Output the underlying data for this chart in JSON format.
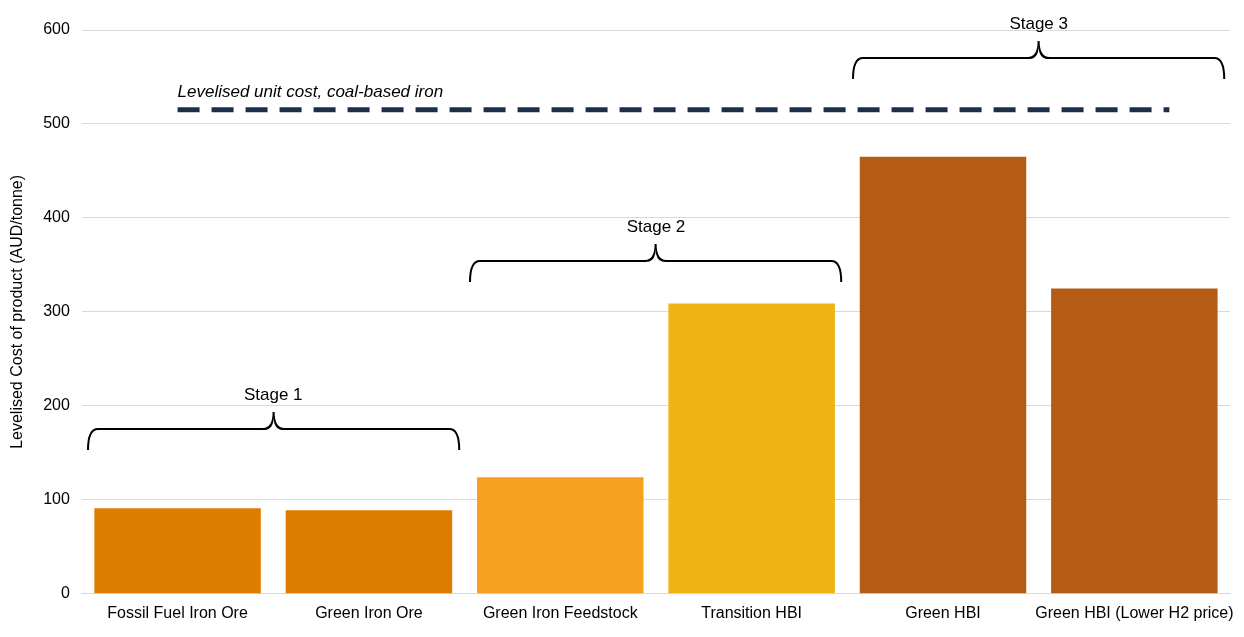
{
  "chart_data": {
    "type": "bar",
    "ylabel": "Levelised Cost of product (AUD/tonne)",
    "categories": [
      "Fossil Fuel Iron Ore",
      "Green Iron Ore",
      "Green Iron Feedstock",
      "Transition HBI",
      "Green HBI",
      "Green HBI (Lower H2 price)"
    ],
    "values": [
      91,
      89,
      124,
      309,
      465,
      325
    ],
    "colors": [
      "#de7c00",
      "#de7c00",
      "#f5a11f",
      "#efb314",
      "#b45c14",
      "#b45c14"
    ],
    "ylim": [
      0,
      600
    ],
    "yticks": [
      0,
      100,
      200,
      300,
      400,
      500,
      600
    ],
    "grid": "y",
    "legend": false,
    "ref_lines": [
      {
        "axis": "y",
        "value": 515,
        "label": "Levelised unit cost, coal-based iron",
        "color": "#1c2e4a",
        "line_style": "dashed"
      }
    ],
    "annotations": [
      "Stage 1",
      "Stage 2",
      "Stage 3"
    ]
  }
}
